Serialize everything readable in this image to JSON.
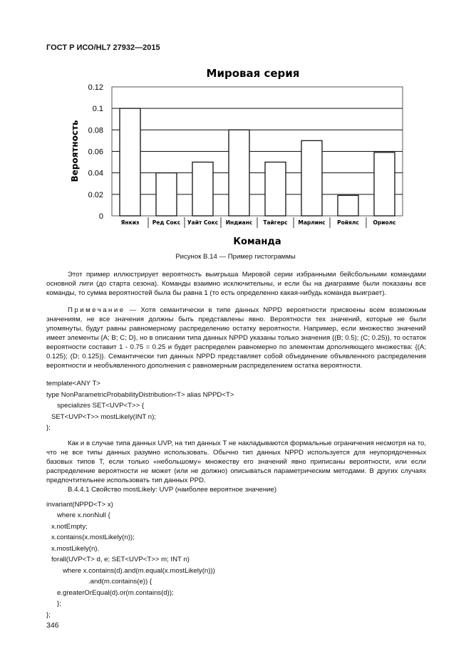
{
  "header": "ГОСТ Р ИСО/HL7 27932—2015",
  "chart_data": {
    "type": "bar",
    "title": "Мировая серия",
    "xlabel": "Команда",
    "ylabel": "Вероятность",
    "categories": [
      "Янкиз",
      "Ред Сокс",
      "Уайт Сокс",
      "Индианс",
      "Тайгерс",
      "Марлинс",
      "Ройялс",
      "Ориолс"
    ],
    "values": [
      0.1,
      0.04,
      0.05,
      0.08,
      0.05,
      0.07,
      0.019,
      0.059
    ],
    "ylim": [
      0,
      0.12
    ],
    "yticks": [
      "0",
      "0.02",
      "0.04",
      "0.06",
      "0.08",
      "0.1",
      "0.12"
    ],
    "grid": true,
    "bar_color": "#ffffff"
  },
  "caption": "Рисунок В.14 — Пример гистограммы",
  "para1": "Этот пример иллюстрирует вероятность выигрыша Мировой серии избранными бейсбольными командами основной лиги (до старта сезона). Команды взаимно исключительны, и если бы на диаграмме были показаны все команды, то сумма вероятностей была бы равна 1 (то есть определенно какая-нибудь команда выиграет).",
  "note_label": "Примечание",
  "note": " — Хотя семантически в типе данных NPPD вероятности присвоены всем возможным значениям, не все значения должны быть представлены явно. Вероятности тех значений, которые не были упомянуты, будут равны равномерному распределению остатку вероятности. Например, если множество значений имеет элементы {A; B; C; D}, но в описании типа данных NPPD указаны только значения {(B; 0.5); (C; 0.25)}, то остаток вероятности составит 1 - 0.75 = 0.25 и будет распределен равномерно по элементам дополняющего множества: {(A; 0.125); (D; 0.125)}. Семантически тип данных NPPD представляет собой объединение объявленного распределения вероятности и необъявленного дополнения с равномерным распределением остатка вероятности.",
  "code1": [
    "template<ANY T>",
    "type NonParametricProbabilityDistribution<T> alias NPPD<T>",
    "specializes SET<UVP<T>> {",
    "SET<UVP<T>> mostLikely(INT n);",
    "};"
  ],
  "para2": "Как и в случае типа данных UVP, на тип данных T не накладываются формальные ограничения несмотря на то, что не все типы данных разумно использовать. Обычно тип данных NPPD используется для неупорядоченных базовых типов T, если только «небольшому» множеству его значений явно приписаны вероятности, или если распределение вероятности не может (или не должно) описываться параметрическим методами. В других случаях предпочтительнее использовать тип данных PPD.",
  "section": "B.4.4.1 Свойство mostLikely: UVP (наиболее вероятное значение)",
  "code2": [
    "invariant(NPPD<T> x)",
    "where x.nonNull {",
    "x.notEmpty;",
    "x.contains(x.mostLikely(n));",
    "x.mostLikely(n).",
    "forall(UVP<T> d, e; SET<UVP<T>> m; INT n)",
    "where x.contains(d).and(m.equal(x.mostLikely(n)))",
    ".and(m.contains(e)) {",
    "e.greaterOrEqual(d).or(m.contains(d));",
    "};",
    "};"
  ],
  "page_number": "346"
}
